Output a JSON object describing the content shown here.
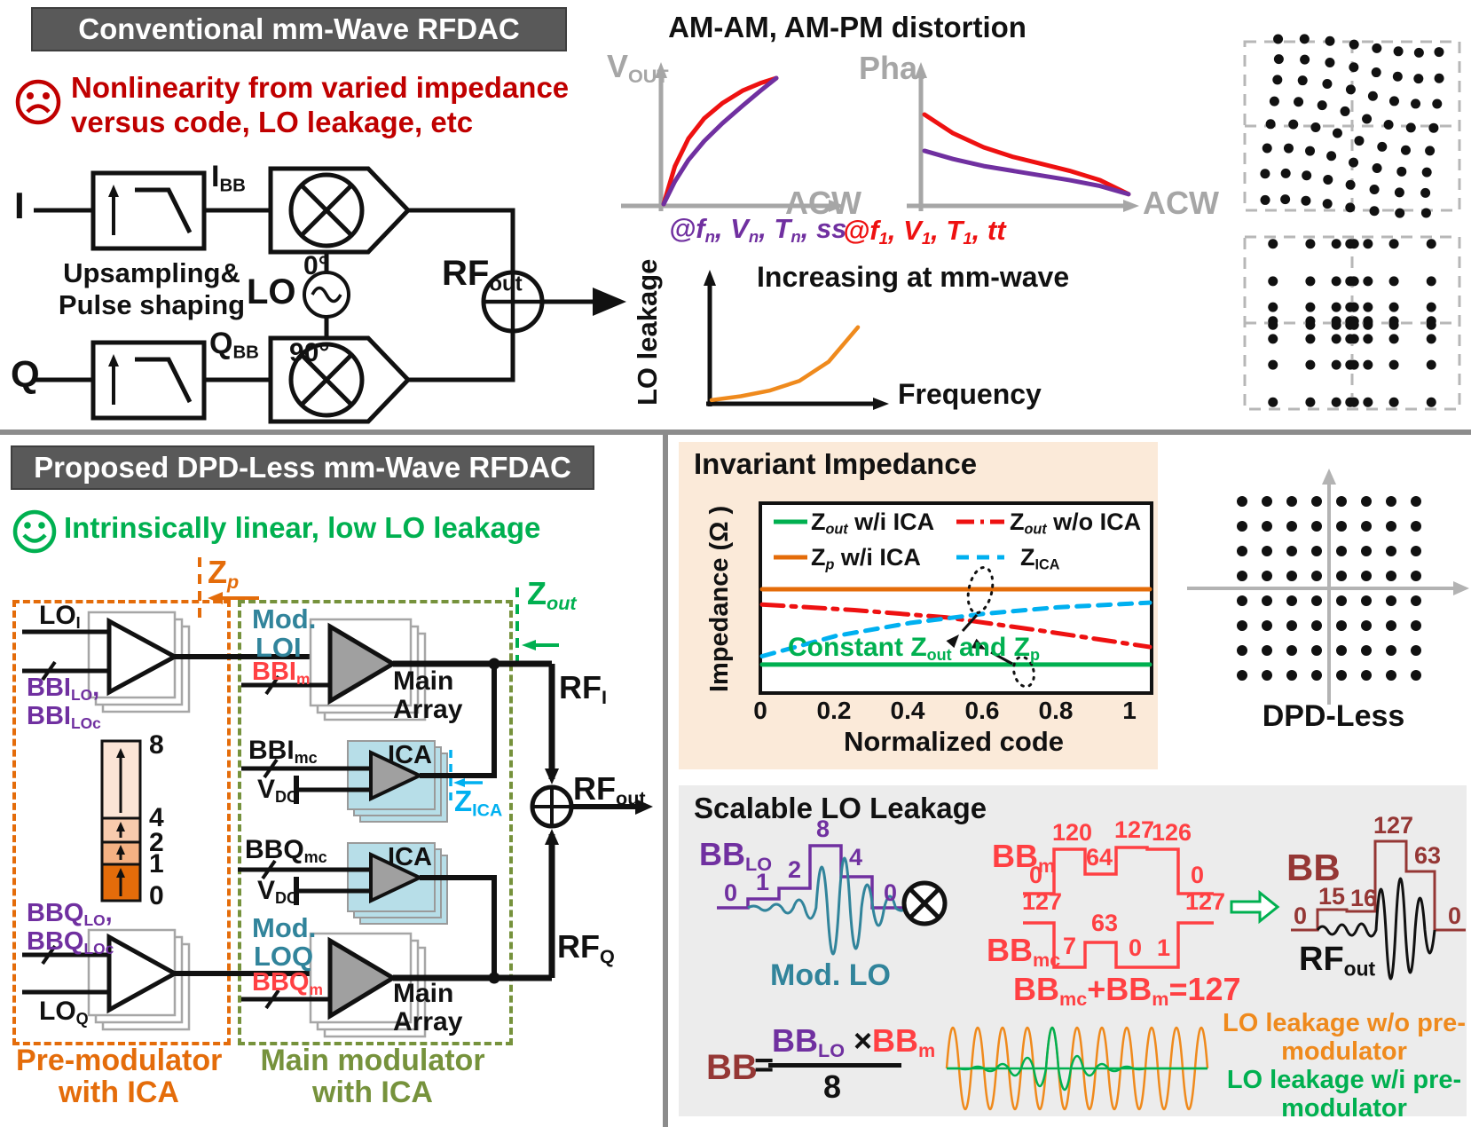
{
  "colors": {
    "header_bg": "#595959",
    "bad_red": "#c00000",
    "good_green": "#00b050",
    "purple": "#7030a0",
    "teal": "#31849b",
    "orange": "#e46c0a",
    "olive": "#76923c",
    "cyan": "#00b0f0",
    "salmon_red": "#ff4043",
    "dark_red": "#953735",
    "axis_gray": "#a6a6a6",
    "ica_blue": "#b7dee8",
    "beige_panel": "#fbead9",
    "gray_panel": "#ececec"
  },
  "conventional": {
    "title": "Conventional mm-Wave RFDAC",
    "issue_line1": "Nonlinearity from varied impedance",
    "issue_line2": "versus code, LO leakage, etc",
    "labels": {
      "i": "I",
      "q": "Q",
      "ibb": [
        {
          "t": "I"
        },
        {
          "sub": "BB"
        }
      ],
      "qbb": [
        {
          "t": "Q"
        },
        {
          "sub": "BB"
        }
      ],
      "lo": "LO",
      "deg0": "0°",
      "deg90": "90°",
      "rfout": [
        {
          "t": "RF"
        },
        {
          "sub": "out"
        }
      ],
      "upsampling1": "Upsampling&",
      "upsampling2": "Pulse shaping"
    }
  },
  "distortion": {
    "title": "AM-AM, AM-PM distortion",
    "vout": [
      {
        "t": "V"
      },
      {
        "sub": "OUT"
      }
    ],
    "acw": "ACW",
    "pha": "Pha.",
    "acw2": "ACW",
    "cond_nominal": [
      {
        "t": "@f"
      },
      {
        "sub": "n"
      },
      {
        "t": ", V"
      },
      {
        "sub": "n"
      },
      {
        "t": ", T"
      },
      {
        "sub": "n"
      },
      {
        "t": ", ss"
      }
    ],
    "cond_worst": [
      {
        "t": "@f"
      },
      {
        "sub": "1"
      },
      {
        "t": ", V"
      },
      {
        "sub": "1"
      },
      {
        "t": ", T"
      },
      {
        "sub": "1"
      },
      {
        "t": ", tt"
      }
    ]
  },
  "lo_leakage": {
    "ylabel": "LO leakage",
    "xlabel": "Frequency",
    "note": "Increasing at mm-wave"
  },
  "proposed": {
    "title": "Proposed DPD-Less mm-Wave RFDAC",
    "benefit": "Intrinsically linear, low LO leakage",
    "zp": [
      {
        "t": "Z"
      },
      {
        "sub": "p",
        "i": 1
      }
    ],
    "zout": [
      {
        "t": "Z"
      },
      {
        "sub": "out",
        "i": 1
      }
    ],
    "zica": [
      {
        "t": "Z"
      },
      {
        "sub": "ICA"
      }
    ],
    "loi": [
      {
        "t": "LO"
      },
      {
        "sub": "I"
      }
    ],
    "loq": [
      {
        "t": "LO"
      },
      {
        "sub": "Q"
      }
    ],
    "bbilo": [
      {
        "t": "BBI"
      },
      {
        "sub": "LO"
      },
      {
        "t": ","
      }
    ],
    "bbiloc": [
      {
        "t": "BBI"
      },
      {
        "sub": "LOc"
      }
    ],
    "bbqlo": [
      {
        "t": "BBQ"
      },
      {
        "sub": "LO"
      },
      {
        "t": ","
      }
    ],
    "bbqloc": [
      {
        "t": "BBQ"
      },
      {
        "sub": "LOc"
      }
    ],
    "mod": "Mod.",
    "modloi": "LOI",
    "modloq": "LOQ",
    "bbim": [
      {
        "t": "BBI"
      },
      {
        "sub": "m"
      }
    ],
    "bbqm": [
      {
        "t": "BBQ"
      },
      {
        "sub": "m"
      }
    ],
    "bbimc": [
      {
        "t": "BBI"
      },
      {
        "sub": "mc"
      }
    ],
    "bbqmc": [
      {
        "t": "BBQ"
      },
      {
        "sub": "mc"
      }
    ],
    "vdc": [
      {
        "t": "V"
      },
      {
        "sub": "DC"
      }
    ],
    "ica": "ICA",
    "main1": "Main",
    "main2": "Array",
    "rfi": [
      {
        "t": "RF"
      },
      {
        "sub": "I"
      }
    ],
    "rfq": [
      {
        "t": "RF"
      },
      {
        "sub": "Q"
      }
    ],
    "rfout": [
      {
        "t": "RF"
      },
      {
        "sub": "out"
      }
    ],
    "bar_labels": [
      "8",
      "4",
      "2",
      "1",
      "0"
    ],
    "bar_colors": [
      "#fbe5d6",
      "#f8cbad",
      "#f4b183",
      "#e46c0a"
    ],
    "premod_label1": "Pre-modulator",
    "premod_label2": "with ICA",
    "mainmod_label1": "Main modulator",
    "mainmod_label2": "with ICA"
  },
  "impedance": {
    "title": "Invariant Impedance",
    "ylabel": "Impedance (Ω )",
    "xlabel": "Normalized code",
    "xticks": [
      "0",
      "0.2",
      "0.4",
      "0.6",
      "0.8",
      "1"
    ],
    "legend": [
      {
        "label": [
          {
            "t": "Z"
          },
          {
            "sub": "out",
            "i": 1
          },
          {
            "t": " w/i ICA"
          }
        ],
        "color": "#00b050",
        "style": "solid"
      },
      {
        "label": [
          {
            "t": "Z"
          },
          {
            "sub": "p",
            "i": 1
          },
          {
            "t": " w/i ICA"
          }
        ],
        "color": "#e46c0a",
        "style": "solid"
      },
      {
        "label": [
          {
            "t": "Z"
          },
          {
            "sub": "out",
            "i": 1
          },
          {
            "t": " w/o ICA"
          }
        ],
        "color": "#ee1111",
        "style": "dashdot"
      },
      {
        "label": [
          {
            "t": "Z"
          },
          {
            "sub": "ICA"
          }
        ],
        "color": "#00b0f0",
        "style": "dashed"
      }
    ],
    "annotation": [
      {
        "t": "Constant Z"
      },
      {
        "sub": "out"
      },
      {
        "t": " and Z"
      },
      {
        "sub": "p"
      }
    ]
  },
  "dpd": {
    "label": "DPD-Less"
  },
  "scalable": {
    "title": "Scalable LO Leakage",
    "bblo": [
      {
        "t": "BB"
      },
      {
        "sub": "LO"
      }
    ],
    "bblo_values": [
      "0",
      "1",
      "2",
      "8",
      "4",
      "0"
    ],
    "modlo": "Mod. LO",
    "bbm": [
      {
        "t": "BB"
      },
      {
        "sub": "m"
      }
    ],
    "bbm_values": [
      "0",
      "120",
      "64",
      "127",
      "126",
      "0"
    ],
    "bbmc": [
      {
        "t": "BB"
      },
      {
        "sub": "mc"
      }
    ],
    "bbmc_values": [
      "127",
      "7",
      "63",
      "0",
      "1",
      "127"
    ],
    "sum_eq": [
      {
        "t": "BB"
      },
      {
        "sub": "mc"
      },
      {
        "t": "+BB"
      },
      {
        "sub": "m"
      },
      {
        "t": "=127"
      }
    ],
    "bb": "BB",
    "bb_values": [
      "0",
      "15",
      "16",
      "127",
      "63",
      "0"
    ],
    "rfout": [
      {
        "t": "RF"
      },
      {
        "sub": "out"
      }
    ],
    "formula": {
      "lhs": "BB",
      "eq": "=",
      "num": [
        {
          "t": "BB",
          "c": "#7030a0"
        },
        {
          "sub": "LO",
          "c": "#7030a0"
        },
        {
          "t": " ×",
          "c": "#111"
        },
        {
          "t": "BB",
          "c": "#ff4043"
        },
        {
          "sub": "m",
          "c": "#ff4043"
        }
      ],
      "den": "8"
    },
    "leak_wo1": "LO leakage w/o pre-",
    "leak_wo2": "modulator",
    "leak_wi1": "LO leakage w/i pre-",
    "leak_wi2": "modulator"
  },
  "constellations": {
    "distorted": {
      "rows": 8,
      "cols": 8,
      "mode": "twist",
      "desc": "64-QAM constellation distorted by AM-AM/AM-PM"
    },
    "compressed": {
      "rows": 8,
      "cols": 8,
      "mode": "compress",
      "desc": "64-QAM constellation compressed toward origin"
    },
    "clean": {
      "rows": 8,
      "cols": 8,
      "mode": "none",
      "desc": "ideal 64-QAM constellation, DPD-less"
    }
  },
  "waves": {
    "modlo": {
      "color": "#31849b",
      "width": 3,
      "amps": [
        2,
        3,
        4,
        6,
        9,
        12,
        46,
        52,
        56,
        46,
        26,
        20,
        13,
        3
      ]
    },
    "rfout": {
      "color": "#111111",
      "width": 3,
      "amps": [
        4,
        5,
        6,
        6,
        7,
        7,
        46,
        55,
        58,
        48,
        36,
        26
      ]
    },
    "leak_wo": {
      "color": "#ef8a1d",
      "width": 2.5,
      "amps": [
        46,
        46,
        46,
        46,
        46,
        46,
        46,
        46,
        46,
        46,
        46,
        46,
        46,
        46,
        46,
        46,
        46,
        46,
        46,
        46,
        46
      ]
    },
    "leak_wi": {
      "color": "#00b050",
      "width": 2.5,
      "amps": [
        0,
        1,
        2,
        3,
        5,
        8,
        12,
        20,
        46,
        24,
        14,
        8,
        5,
        3,
        2,
        1,
        0,
        0,
        0,
        0,
        0
      ]
    }
  },
  "chart_data": [
    {
      "id": "impedance_vs_code",
      "type": "line",
      "title": "Invariant Impedance",
      "xlabel": "Normalized code",
      "ylabel": "Impedance (Ω)",
      "xlim": [
        0,
        1.05
      ],
      "ylim": [
        0,
        1
      ],
      "grid": false,
      "legend_position": "top-inside",
      "series": [
        {
          "name": "Zout w/i ICA",
          "color": "#00b050",
          "style": "solid",
          "width": 5,
          "x": [
            0,
            1.05
          ],
          "y": [
            0.145,
            0.145
          ]
        },
        {
          "name": "Zp w/i ICA",
          "color": "#e46c0a",
          "style": "solid",
          "width": 5,
          "x": [
            0,
            1.05
          ],
          "y": [
            0.553,
            0.553
          ]
        },
        {
          "name": "Zout w/o ICA",
          "color": "#ee1111",
          "style": "dashdot",
          "width": 5,
          "x": [
            0,
            0.25,
            0.5,
            0.75,
            1.05
          ],
          "y": [
            0.47,
            0.44,
            0.4,
            0.33,
            0.24
          ]
        },
        {
          "name": "ZICA",
          "color": "#00b0f0",
          "style": "dashed",
          "width": 5,
          "x": [
            0,
            0.2,
            0.4,
            0.6,
            0.8,
            1.05
          ],
          "y": [
            0.19,
            0.3,
            0.37,
            0.42,
            0.455,
            0.48
          ]
        }
      ]
    },
    {
      "id": "am_am",
      "type": "line",
      "title": "AM-AM distortion",
      "xlabel": "ACW",
      "ylabel": "VOUT",
      "xlim": [
        0,
        1
      ],
      "ylim": [
        0,
        1
      ],
      "series": [
        {
          "name": "@f1,V1,T1,tt",
          "color": "#ee1111",
          "width": 5,
          "x": [
            0,
            0.1,
            0.22,
            0.36,
            0.52,
            0.7,
            0.86,
            1
          ],
          "y": [
            0,
            0.3,
            0.52,
            0.68,
            0.8,
            0.9,
            0.96,
            1
          ]
        },
        {
          "name": "@fn,Vn,Tn,ss",
          "color": "#7030a0",
          "width": 5,
          "x": [
            0,
            0.1,
            0.22,
            0.36,
            0.52,
            0.7,
            0.86,
            1
          ],
          "y": [
            0,
            0.18,
            0.35,
            0.5,
            0.64,
            0.78,
            0.9,
            1
          ]
        }
      ]
    },
    {
      "id": "am_pm",
      "type": "line",
      "title": "AM-PM distortion",
      "xlabel": "ACW",
      "ylabel": "Pha.",
      "xlim": [
        0,
        1
      ],
      "ylim": [
        0,
        1
      ],
      "series": [
        {
          "name": "@f1,V1,T1,tt",
          "color": "#ee1111",
          "width": 5,
          "x": [
            0,
            0.14,
            0.29,
            0.43,
            0.57,
            0.71,
            0.86,
            1
          ],
          "y": [
            0.78,
            0.62,
            0.5,
            0.42,
            0.36,
            0.3,
            0.22,
            0.1
          ]
        },
        {
          "name": "@fn,Vn,Tn,ss",
          "color": "#7030a0",
          "width": 5,
          "x": [
            0,
            0.14,
            0.29,
            0.43,
            0.57,
            0.71,
            0.86,
            1
          ],
          "y": [
            0.47,
            0.4,
            0.34,
            0.3,
            0.26,
            0.22,
            0.17,
            0.1
          ]
        }
      ]
    },
    {
      "id": "lo_leakage_vs_frequency",
      "type": "line",
      "title": "Increasing at mm-wave",
      "xlabel": "Frequency",
      "ylabel": "LO leakage",
      "xlim": [
        0,
        1
      ],
      "ylim": [
        0,
        1
      ],
      "series": [
        {
          "name": "LO leakage",
          "color": "#ef8a1d",
          "width": 4.5,
          "x": [
            0,
            0.2,
            0.4,
            0.6,
            0.8,
            1
          ],
          "y": [
            0.02,
            0.06,
            0.12,
            0.22,
            0.42,
            0.78
          ]
        }
      ]
    }
  ]
}
